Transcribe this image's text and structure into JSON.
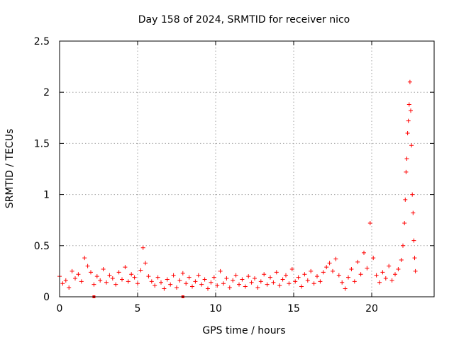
{
  "chart_data": {
    "type": "scatter",
    "title": "Day 158 of 2024, SRMTID for receiver nico",
    "xlabel": "GPS time / hours",
    "ylabel": "SRMTID / TECUs",
    "xlim": [
      0,
      24
    ],
    "ylim": [
      0,
      2.5
    ],
    "x_ticks": [
      {
        "value": 0,
        "label": "0"
      },
      {
        "value": 5,
        "label": "5"
      },
      {
        "value": 10,
        "label": "10"
      },
      {
        "value": 15,
        "label": "15"
      },
      {
        "value": 20,
        "label": "20"
      }
    ],
    "y_ticks": [
      {
        "value": 0,
        "label": "0"
      },
      {
        "value": 0.5,
        "label": "0.5"
      },
      {
        "value": 1,
        "label": "1"
      },
      {
        "value": 1.5,
        "label": "1.5"
      },
      {
        "value": 2,
        "label": "2"
      },
      {
        "value": 2.5,
        "label": "2.5"
      }
    ],
    "grid": true,
    "marker": "plus",
    "color": "#ff0000",
    "series": [
      {
        "name": "SRMTID",
        "points": [
          [
            0.0,
            0.2
          ],
          [
            0.2,
            0.13
          ],
          [
            0.4,
            0.16
          ],
          [
            0.6,
            0.09
          ],
          [
            0.8,
            0.25
          ],
          [
            1.0,
            0.18
          ],
          [
            1.2,
            0.22
          ],
          [
            1.4,
            0.15
          ],
          [
            1.6,
            0.38
          ],
          [
            1.8,
            0.3
          ],
          [
            2.0,
            0.24
          ],
          [
            2.2,
            0.12
          ],
          [
            2.4,
            0.2
          ],
          [
            2.6,
            0.16
          ],
          [
            2.8,
            0.27
          ],
          [
            3.0,
            0.14
          ],
          [
            3.2,
            0.21
          ],
          [
            3.4,
            0.18
          ],
          [
            3.6,
            0.12
          ],
          [
            3.8,
            0.24
          ],
          [
            4.0,
            0.17
          ],
          [
            4.2,
            0.29
          ],
          [
            4.4,
            0.15
          ],
          [
            4.6,
            0.22
          ],
          [
            4.8,
            0.19
          ],
          [
            5.0,
            0.13
          ],
          [
            5.2,
            0.26
          ],
          [
            5.35,
            0.48
          ],
          [
            5.5,
            0.33
          ],
          [
            5.7,
            0.2
          ],
          [
            5.9,
            0.15
          ],
          [
            6.1,
            0.11
          ],
          [
            6.3,
            0.19
          ],
          [
            6.5,
            0.14
          ],
          [
            6.7,
            0.08
          ],
          [
            6.9,
            0.17
          ],
          [
            7.1,
            0.12
          ],
          [
            7.3,
            0.21
          ],
          [
            7.5,
            0.09
          ],
          [
            7.7,
            0.16
          ],
          [
            7.9,
            0.23
          ],
          [
            8.1,
            0.13
          ],
          [
            8.3,
            0.19
          ],
          [
            8.5,
            0.1
          ],
          [
            8.7,
            0.15
          ],
          [
            8.9,
            0.21
          ],
          [
            9.1,
            0.12
          ],
          [
            9.3,
            0.17
          ],
          [
            9.5,
            0.08
          ],
          [
            9.7,
            0.14
          ],
          [
            9.9,
            0.19
          ],
          [
            10.1,
            0.11
          ],
          [
            10.3,
            0.25
          ],
          [
            10.5,
            0.13
          ],
          [
            10.7,
            0.18
          ],
          [
            10.9,
            0.09
          ],
          [
            11.1,
            0.16
          ],
          [
            11.3,
            0.21
          ],
          [
            11.5,
            0.12
          ],
          [
            11.7,
            0.17
          ],
          [
            11.9,
            0.1
          ],
          [
            12.1,
            0.2
          ],
          [
            12.3,
            0.14
          ],
          [
            12.5,
            0.18
          ],
          [
            12.7,
            0.09
          ],
          [
            12.9,
            0.15
          ],
          [
            13.1,
            0.22
          ],
          [
            13.3,
            0.12
          ],
          [
            13.5,
            0.19
          ],
          [
            13.7,
            0.14
          ],
          [
            13.9,
            0.24
          ],
          [
            14.1,
            0.11
          ],
          [
            14.3,
            0.17
          ],
          [
            14.5,
            0.21
          ],
          [
            14.7,
            0.13
          ],
          [
            14.9,
            0.27
          ],
          [
            15.1,
            0.15
          ],
          [
            15.3,
            0.19
          ],
          [
            15.5,
            0.1
          ],
          [
            15.7,
            0.22
          ],
          [
            15.9,
            0.16
          ],
          [
            16.1,
            0.25
          ],
          [
            16.3,
            0.13
          ],
          [
            16.5,
            0.2
          ],
          [
            16.7,
            0.15
          ],
          [
            16.9,
            0.24
          ],
          [
            17.1,
            0.29
          ],
          [
            17.3,
            0.33
          ],
          [
            17.5,
            0.25
          ],
          [
            17.7,
            0.37
          ],
          [
            17.9,
            0.21
          ],
          [
            18.1,
            0.14
          ],
          [
            18.3,
            0.08
          ],
          [
            18.5,
            0.19
          ],
          [
            18.7,
            0.27
          ],
          [
            18.9,
            0.15
          ],
          [
            19.1,
            0.34
          ],
          [
            19.3,
            0.22
          ],
          [
            19.5,
            0.43
          ],
          [
            19.7,
            0.28
          ],
          [
            19.9,
            0.72
          ],
          [
            20.1,
            0.38
          ],
          [
            20.3,
            0.21
          ],
          [
            20.5,
            0.14
          ],
          [
            20.7,
            0.24
          ],
          [
            20.9,
            0.18
          ],
          [
            21.1,
            0.3
          ],
          [
            21.3,
            0.16
          ],
          [
            21.5,
            0.22
          ],
          [
            21.7,
            0.27
          ],
          [
            21.9,
            0.36
          ],
          [
            22.0,
            0.5
          ],
          [
            22.1,
            0.72
          ],
          [
            22.15,
            0.95
          ],
          [
            22.2,
            1.22
          ],
          [
            22.25,
            1.35
          ],
          [
            22.3,
            1.6
          ],
          [
            22.35,
            1.72
          ],
          [
            22.4,
            1.88
          ],
          [
            22.45,
            2.1
          ],
          [
            22.5,
            1.82
          ],
          [
            22.55,
            1.48
          ],
          [
            22.6,
            1.0
          ],
          [
            22.65,
            0.82
          ],
          [
            22.7,
            0.55
          ],
          [
            22.75,
            0.38
          ],
          [
            22.8,
            0.25
          ]
        ]
      }
    ],
    "axis_markers": [
      2.2,
      7.9
    ]
  }
}
